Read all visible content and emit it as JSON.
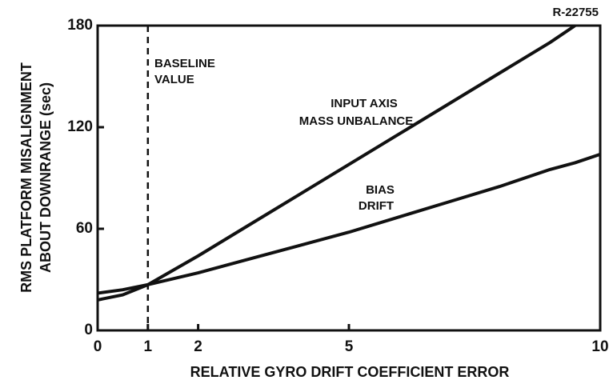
{
  "chart_data": {
    "type": "line",
    "title": "R-22755",
    "xlabel": "RELATIVE GYRO DRIFT COEFFICIENT ERROR",
    "ylabel": [
      "RMS PLATFORM MISALIGNMENT",
      "ABOUT DOWNRANGE (sec)"
    ],
    "baseline": {
      "x": 1,
      "label": [
        "BASELINE",
        "VALUE"
      ]
    },
    "x": [
      0,
      0.5,
      1,
      2,
      3,
      4,
      5,
      6,
      7,
      8,
      9,
      9.5,
      10
    ],
    "series": [
      {
        "name": [
          "INPUT AXIS",
          "MASS UNBALANCE"
        ],
        "color": "#111111",
        "values": [
          18,
          21,
          27,
          44,
          62,
          80,
          98,
          116,
          134,
          152,
          170,
          180,
          null
        ]
      },
      {
        "name": [
          "BIAS",
          "DRIFT"
        ],
        "color": "#111111",
        "values": [
          22,
          24,
          27,
          34,
          42,
          50,
          58,
          67,
          76,
          85,
          95,
          99,
          104
        ]
      }
    ],
    "xlim": [
      0,
      10
    ],
    "xticks": [
      0,
      1,
      2,
      5,
      10
    ],
    "ylim": [
      0,
      180
    ],
    "yticks": [
      0,
      60,
      120,
      180
    ]
  }
}
